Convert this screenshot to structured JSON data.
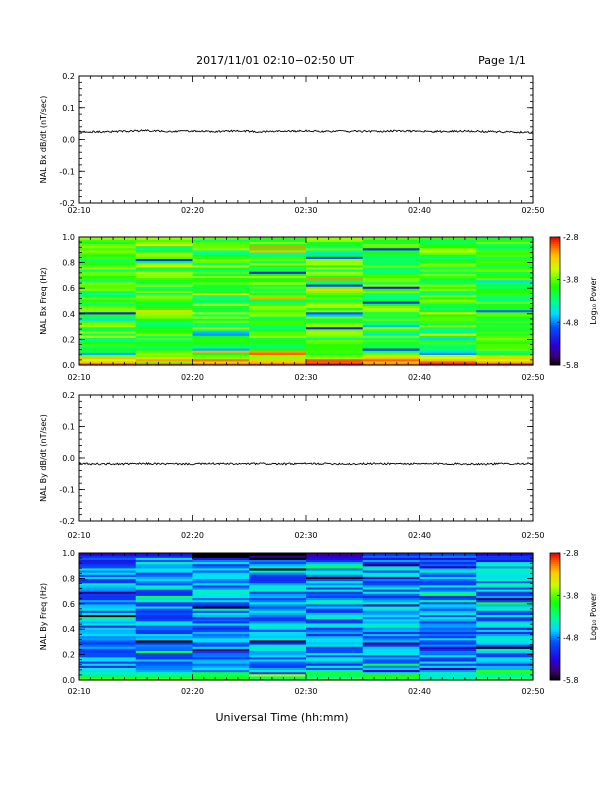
{
  "header": {
    "title": "2017/11/01  02:10−02:50 UT",
    "page_label": "Page 1/1"
  },
  "footer": {
    "xlabel": "Universal Time (hh:mm)"
  },
  "chart_data": [
    {
      "type": "line",
      "ylabel": "NAL Bx dB/dt (nT/sec)",
      "x_ticks": [
        "02:10",
        "02:20",
        "02:30",
        "02:40",
        "02:50"
      ],
      "x_range": [
        "02:10",
        "02:50"
      ],
      "ylim": [
        -0.2,
        0.2
      ],
      "y_ticks": [
        "-0.2",
        "-0.1",
        "0.0",
        "0.1",
        "0.2"
      ],
      "series": [
        {
          "color": "#000000",
          "x": [
            "02:10",
            "02:12",
            "02:14",
            "02:16",
            "02:18",
            "02:20",
            "02:22",
            "02:24",
            "02:26",
            "02:28",
            "02:30",
            "02:32",
            "02:34",
            "02:36",
            "02:38",
            "02:40",
            "02:42",
            "02:44",
            "02:46",
            "02:48",
            "02:50"
          ],
          "y": [
            0.025,
            0.024,
            0.026,
            0.028,
            0.025,
            0.026,
            0.025,
            0.028,
            0.024,
            0.026,
            0.027,
            0.025,
            0.026,
            0.025,
            0.027,
            0.026,
            0.025,
            0.027,
            0.025,
            0.024,
            0.022
          ]
        }
      ]
    },
    {
      "type": "heatmap",
      "ylabel": "NAL Bx Freq (Hz)",
      "colorbar_label": "Log₁₀ Power",
      "colorbar_ticks": [
        "-2.8",
        "-3.8",
        "-4.8",
        "-5.8"
      ],
      "clim": [
        -5.8,
        -2.8
      ],
      "x_ticks": [
        "02:10",
        "02:20",
        "02:30",
        "02:40",
        "02:50"
      ],
      "ylim": [
        0.0,
        1.0
      ],
      "y_ticks": [
        "0.0",
        "0.2",
        "0.4",
        "0.6",
        "0.8",
        "1.0"
      ],
      "time_bins": 8,
      "freq_bins": 60,
      "typical_log_power": -3.95,
      "low_freq_peak_log_power": -2.9,
      "colormap": "rainbow"
    },
    {
      "type": "line",
      "ylabel": "NAL By dB/dt (nT/sec)",
      "x_ticks": [
        "02:10",
        "02:20",
        "02:30",
        "02:40",
        "02:50"
      ],
      "x_range": [
        "02:10",
        "02:50"
      ],
      "ylim": [
        -0.2,
        0.2
      ],
      "y_ticks": [
        "-0.2",
        "-0.1",
        "0.0",
        "0.1",
        "0.2"
      ],
      "series": [
        {
          "color": "#000000",
          "x": [
            "02:10",
            "02:12",
            "02:14",
            "02:16",
            "02:18",
            "02:20",
            "02:22",
            "02:24",
            "02:26",
            "02:28",
            "02:30",
            "02:32",
            "02:34",
            "02:36",
            "02:38",
            "02:40",
            "02:42",
            "02:44",
            "02:46",
            "02:48",
            "02:50"
          ],
          "y": [
            -0.018,
            -0.019,
            -0.019,
            -0.018,
            -0.019,
            -0.019,
            -0.018,
            -0.019,
            -0.018,
            -0.019,
            -0.018,
            -0.018,
            -0.019,
            -0.018,
            -0.018,
            -0.019,
            -0.018,
            -0.019,
            -0.019,
            -0.018,
            -0.018
          ]
        }
      ]
    },
    {
      "type": "heatmap",
      "ylabel": "NAL By Freq (Hz)",
      "colorbar_label": "Log₁₀ Power",
      "colorbar_ticks": [
        "-2.8",
        "-3.8",
        "-4.8",
        "-5.8"
      ],
      "clim": [
        -5.8,
        -2.8
      ],
      "x_ticks": [
        "02:10",
        "02:20",
        "02:30",
        "02:40",
        "02:50"
      ],
      "ylim": [
        0.0,
        1.0
      ],
      "y_ticks": [
        "0.0",
        "0.2",
        "0.4",
        "0.6",
        "0.8",
        "1.0"
      ],
      "time_bins": 8,
      "freq_bins": 60,
      "typical_log_power": -4.75,
      "low_freq_peak_log_power": -4.0,
      "colormap": "rainbow"
    }
  ]
}
